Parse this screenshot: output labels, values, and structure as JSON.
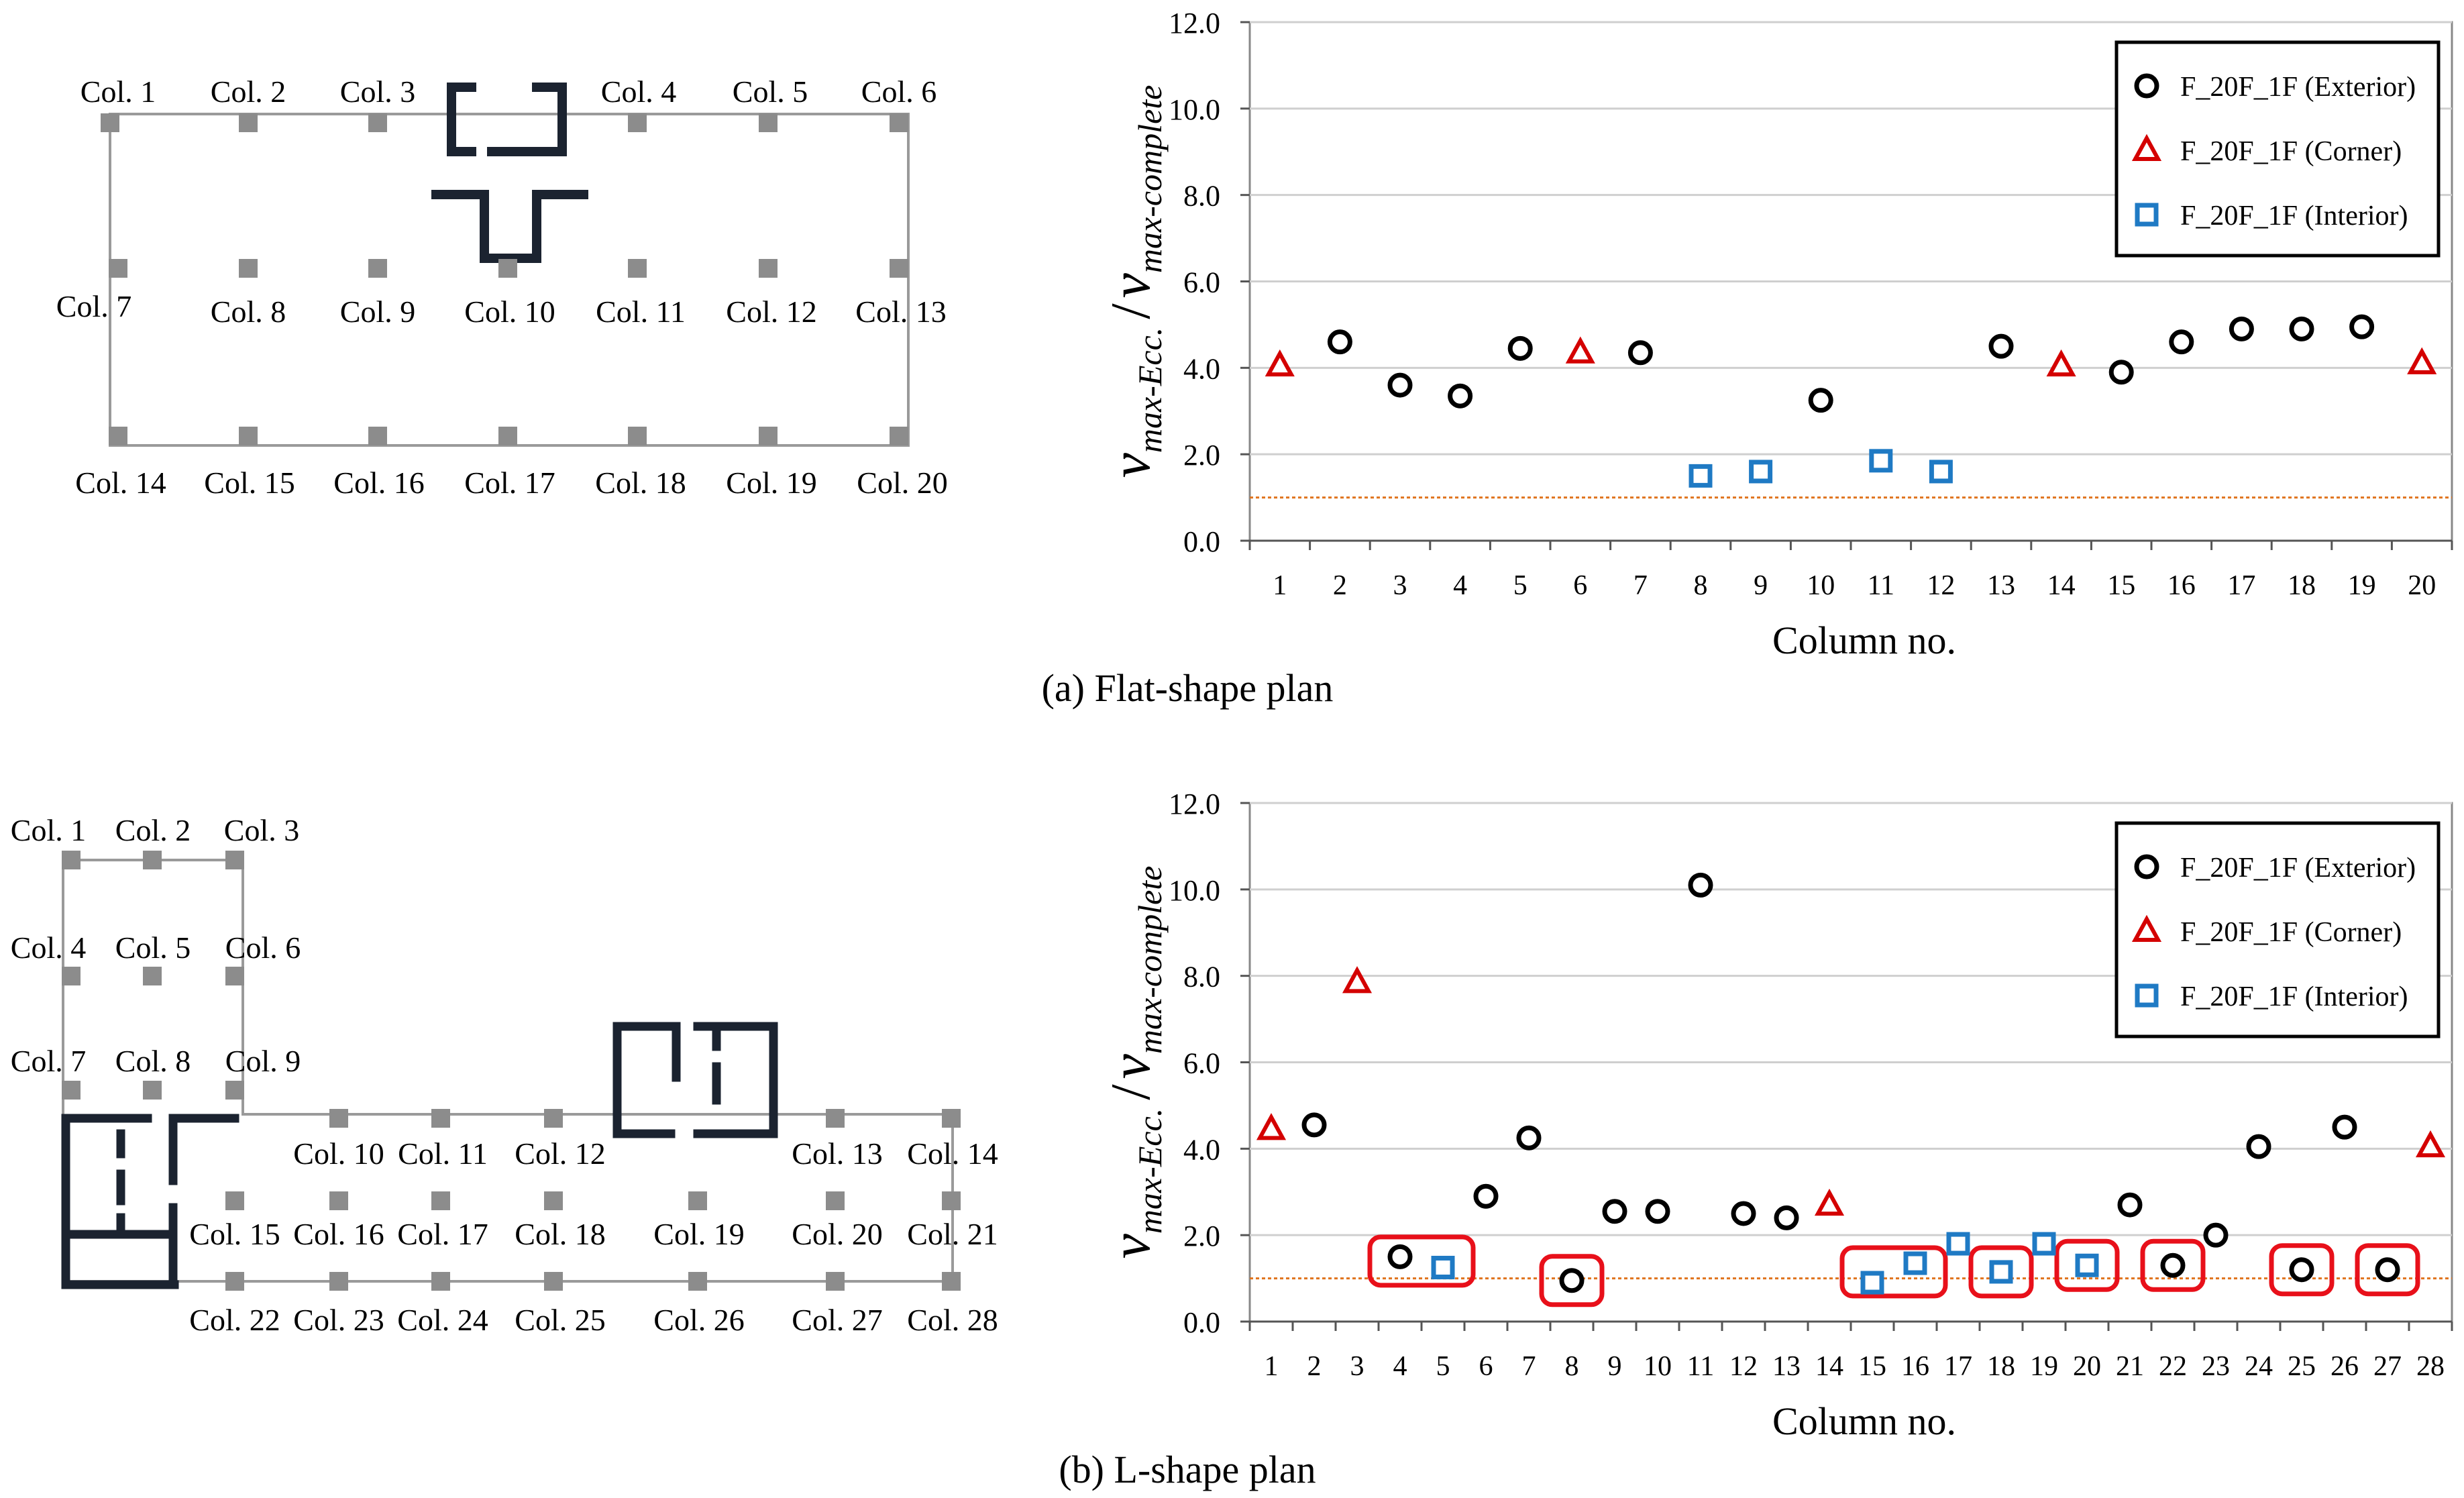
{
  "chart_data": [
    {
      "type": "scatter",
      "panel": "a",
      "title": "",
      "xlabel": "Column no.",
      "ylabel_v": "v",
      "ylabel_num_sub": "max-Ecc.",
      "ylabel_den_sub": "max-complete",
      "ylim": [
        0,
        12
      ],
      "yticks": [
        0,
        2,
        4,
        6,
        8,
        10,
        12
      ],
      "ytick_labels": [
        "0.0",
        "2.0",
        "4.0",
        "6.0",
        "8.0",
        "10.0",
        "12.0"
      ],
      "categories": [
        "1",
        "2",
        "3",
        "4",
        "5",
        "6",
        "7",
        "8",
        "9",
        "10",
        "11",
        "12",
        "13",
        "14",
        "15",
        "16",
        "17",
        "18",
        "19",
        "20"
      ],
      "grid": true,
      "legend_position": "top-right",
      "reference_line": 1.0,
      "series": [
        {
          "name": "F_20F_1F (Exterior)",
          "marker": "circle",
          "color": "#000000",
          "x": [
            2,
            3,
            4,
            5,
            7,
            10,
            13,
            15,
            16,
            17,
            18,
            19
          ],
          "y": [
            4.6,
            3.6,
            3.35,
            4.45,
            4.35,
            3.25,
            4.5,
            3.9,
            4.6,
            4.9,
            4.9,
            4.95
          ]
        },
        {
          "name": "F_20F_1F (Corner)",
          "marker": "triangle",
          "color": "#d40000",
          "x": [
            1,
            6,
            14,
            20
          ],
          "y": [
            4.05,
            4.35,
            4.05,
            4.1
          ]
        },
        {
          "name": "F_20F_1F (Interior)",
          "marker": "square",
          "color": "#1f7ac4",
          "x": [
            8,
            9,
            11,
            12
          ],
          "y": [
            1.5,
            1.6,
            1.85,
            1.6
          ]
        }
      ],
      "caption": "(a) Flat-shape plan"
    },
    {
      "type": "scatter",
      "panel": "b",
      "title": "",
      "xlabel": "Column no.",
      "ylabel_v": "v",
      "ylabel_num_sub": "max-Ecc.",
      "ylabel_den_sub": "max-complete",
      "ylim": [
        0,
        12
      ],
      "yticks": [
        0,
        2,
        4,
        6,
        8,
        10,
        12
      ],
      "ytick_labels": [
        "0.0",
        "2.0",
        "4.0",
        "6.0",
        "8.0",
        "10.0",
        "12.0"
      ],
      "categories": [
        "1",
        "2",
        "3",
        "4",
        "5",
        "6",
        "7",
        "8",
        "9",
        "10",
        "11",
        "12",
        "13",
        "14",
        "15",
        "16",
        "17",
        "18",
        "19",
        "20",
        "21",
        "22",
        "23",
        "24",
        "25",
        "26",
        "27",
        "28"
      ],
      "grid": true,
      "legend_position": "top-right",
      "reference_line": 1.0,
      "series": [
        {
          "name": "F_20F_1F (Exterior)",
          "marker": "circle",
          "color": "#000000",
          "x": [
            2,
            4,
            6,
            7,
            8,
            9,
            10,
            11,
            12,
            13,
            21,
            22,
            23,
            24,
            25,
            26,
            27
          ],
          "y": [
            4.55,
            1.5,
            2.9,
            4.25,
            0.95,
            2.55,
            2.55,
            10.1,
            2.5,
            2.4,
            2.7,
            1.3,
            2.0,
            4.05,
            1.2,
            4.5,
            1.2
          ]
        },
        {
          "name": "F_20F_1F (Corner)",
          "marker": "triangle",
          "color": "#d40000",
          "x": [
            1,
            3,
            14,
            28
          ],
          "y": [
            4.45,
            7.85,
            2.7,
            4.05
          ]
        },
        {
          "name": "F_20F_1F (Interior)",
          "marker": "square",
          "color": "#1f7ac4",
          "x": [
            5,
            15,
            16,
            17,
            18,
            19,
            20
          ],
          "y": [
            1.25,
            0.9,
            1.35,
            1.8,
            1.15,
            1.8,
            1.3
          ]
        }
      ],
      "highlights": [
        {
          "x_from": 4,
          "x_to": 5,
          "y": 1.4
        },
        {
          "x_from": 8,
          "x_to": 8,
          "y": 0.95
        },
        {
          "x_from": 15,
          "x_to": 16,
          "y": 1.15
        },
        {
          "x_from": 18,
          "x_to": 18,
          "y": 1.15
        },
        {
          "x_from": 20,
          "x_to": 20,
          "y": 1.3
        },
        {
          "x_from": 22,
          "x_to": 22,
          "y": 1.3
        },
        {
          "x_from": 25,
          "x_to": 25,
          "y": 1.2
        },
        {
          "x_from": 27,
          "x_to": 27,
          "y": 1.2
        }
      ],
      "caption": "(b) L-shape plan"
    }
  ],
  "plan_a": {
    "labels": [
      "Col. 1",
      "Col. 2",
      "Col. 3",
      "Col. 4",
      "Col. 5",
      "Col. 6",
      "Col. 7",
      "Col. 8",
      "Col. 9",
      "Col. 10",
      "Col. 11",
      "Col. 12",
      "Col. 13",
      "Col. 14",
      "Col. 15",
      "Col. 16",
      "Col. 17",
      "Col. 18",
      "Col. 19",
      "Col. 20"
    ]
  },
  "plan_b": {
    "labels": [
      "Col. 1",
      "Col. 2",
      "Col. 3",
      "Col. 4",
      "Col. 5",
      "Col. 6",
      "Col. 7",
      "Col. 8",
      "Col. 9",
      "Col. 10",
      "Col. 11",
      "Col. 12",
      "Col. 13",
      "Col. 14",
      "Col. 15",
      "Col. 16",
      "Col. 17",
      "Col. 18",
      "Col. 19",
      "Col. 20",
      "Col. 21",
      "Col. 22",
      "Col. 23",
      "Col. 24",
      "Col. 25",
      "Col. 26",
      "Col. 27",
      "Col. 28"
    ]
  }
}
